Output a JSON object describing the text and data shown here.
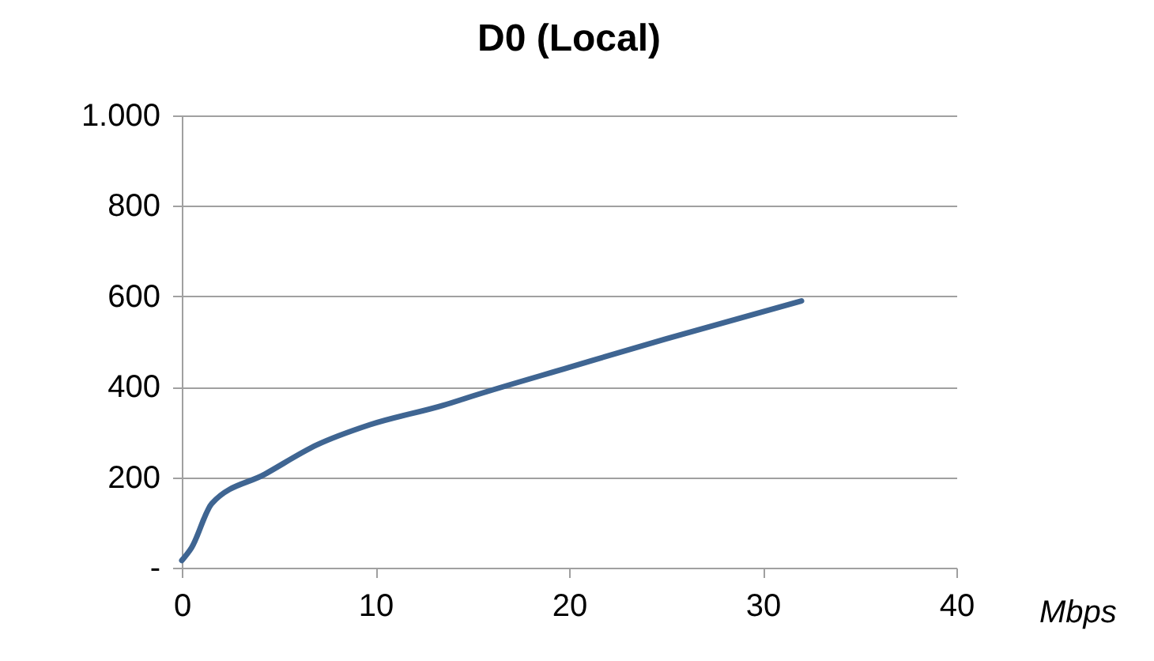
{
  "chart_data": {
    "type": "line",
    "title": "D0 (Local)",
    "xlabel": "Mbps",
    "x": [
      0,
      0.5,
      1.55,
      4.3,
      7.0,
      9.7,
      13.5,
      15.2,
      20,
      25,
      32
    ],
    "series": [
      {
        "color": "#3f6592",
        "values": [
          16,
          44,
          142,
          207,
          272,
          316,
          359,
          382,
          443,
          506,
          590
        ]
      }
    ],
    "xlim": [
      0,
      40
    ],
    "xticks": [
      0,
      10,
      20,
      30,
      40
    ],
    "ylim": [
      0,
      1000
    ],
    "yticks": [
      {
        "value": 0,
        "label": "-"
      },
      200,
      400,
      600,
      800,
      {
        "value": 1000,
        "label": "1.000"
      }
    ],
    "grid": "y",
    "marker": "none",
    "line_style": "solid"
  }
}
